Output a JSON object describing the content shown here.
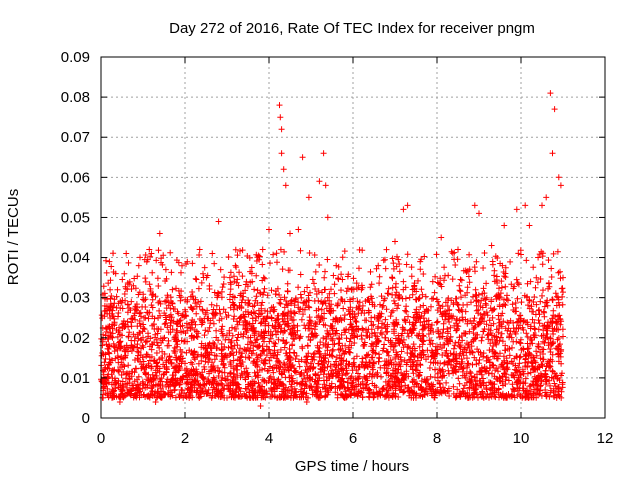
{
  "chart_data": {
    "type": "scatter",
    "title": "Day 272 of 2016, Rate Of TEC Index for receiver pngm",
    "xlabel": "GPS time / hours",
    "ylabel": "ROTI / TECUs",
    "xlim": [
      0,
      12
    ],
    "ylim": [
      0,
      0.09
    ],
    "xticks": [
      "0",
      "2",
      "4",
      "6",
      "8",
      "10",
      "12"
    ],
    "yticks": [
      "0",
      "0.01",
      "0.02",
      "0.03",
      "0.04",
      "0.05",
      "0.06",
      "0.07",
      "0.08",
      "0.09"
    ],
    "grid": true,
    "marker": "+",
    "marker_color": "#ff0000",
    "data_range_hours": [
      0,
      11.0
    ],
    "typical_band": [
      0.005,
      0.03
    ],
    "series": [
      {
        "name": "ROTI",
        "points": [
          [
            0.2,
            0.039
          ],
          [
            0.35,
            0.036
          ],
          [
            0.6,
            0.041
          ],
          [
            0.9,
            0.038
          ],
          [
            1.15,
            0.042
          ],
          [
            1.4,
            0.046
          ],
          [
            1.7,
            0.032
          ],
          [
            2.0,
            0.027
          ],
          [
            2.35,
            0.042
          ],
          [
            2.65,
            0.041
          ],
          [
            2.8,
            0.049
          ],
          [
            3.2,
            0.038
          ],
          [
            3.6,
            0.034
          ],
          [
            3.85,
            0.042
          ],
          [
            4.0,
            0.047
          ],
          [
            4.25,
            0.078
          ],
          [
            4.27,
            0.075
          ],
          [
            4.3,
            0.072
          ],
          [
            4.3,
            0.066
          ],
          [
            4.35,
            0.062
          ],
          [
            4.4,
            0.058
          ],
          [
            4.5,
            0.046
          ],
          [
            4.7,
            0.047
          ],
          [
            4.8,
            0.065
          ],
          [
            4.95,
            0.055
          ],
          [
            5.2,
            0.059
          ],
          [
            5.3,
            0.066
          ],
          [
            5.35,
            0.058
          ],
          [
            5.4,
            0.05
          ],
          [
            5.6,
            0.038
          ],
          [
            6.2,
            0.032
          ],
          [
            6.6,
            0.038
          ],
          [
            7.0,
            0.044
          ],
          [
            7.2,
            0.052
          ],
          [
            7.3,
            0.053
          ],
          [
            7.6,
            0.039
          ],
          [
            7.9,
            0.034
          ],
          [
            8.1,
            0.045
          ],
          [
            8.5,
            0.042
          ],
          [
            8.9,
            0.053
          ],
          [
            9.0,
            0.051
          ],
          [
            9.3,
            0.043
          ],
          [
            9.6,
            0.048
          ],
          [
            9.9,
            0.052
          ],
          [
            10.1,
            0.053
          ],
          [
            10.2,
            0.048
          ],
          [
            10.5,
            0.053
          ],
          [
            10.6,
            0.055
          ],
          [
            10.7,
            0.081
          ],
          [
            10.75,
            0.066
          ],
          [
            10.8,
            0.077
          ],
          [
            10.9,
            0.06
          ],
          [
            10.95,
            0.058
          ],
          [
            11.0,
            0.035
          ],
          [
            0.45,
            0.004
          ],
          [
            1.3,
            0.004
          ],
          [
            2.1,
            0.005
          ],
          [
            3.0,
            0.005
          ],
          [
            3.8,
            0.003
          ],
          [
            4.9,
            0.004
          ],
          [
            5.8,
            0.005
          ],
          [
            6.6,
            0.006
          ],
          [
            7.5,
            0.005
          ],
          [
            8.4,
            0.006
          ],
          [
            9.2,
            0.006
          ],
          [
            10.1,
            0.005
          ],
          [
            10.85,
            0.005
          ]
        ]
      }
    ]
  }
}
